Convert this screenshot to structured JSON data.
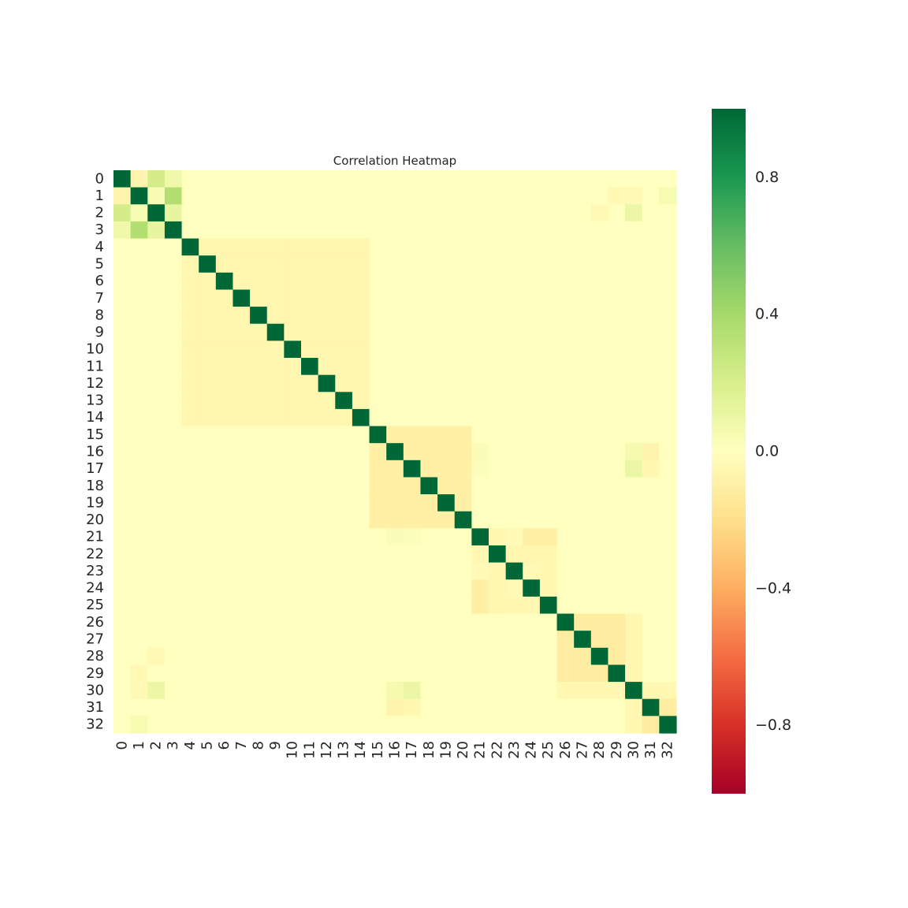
{
  "chart_data": {
    "type": "heatmap",
    "title": "Correlation Heatmap",
    "xlabel": "",
    "ylabel": "",
    "labels": [
      "0",
      "1",
      "2",
      "3",
      "4",
      "5",
      "6",
      "7",
      "8",
      "9",
      "10",
      "11",
      "12",
      "13",
      "14",
      "15",
      "16",
      "17",
      "18",
      "19",
      "20",
      "21",
      "22",
      "23",
      "24",
      "25",
      "26",
      "27",
      "28",
      "29",
      "30",
      "31",
      "32"
    ],
    "colormap": "RdYlGn",
    "vmin": -1,
    "vmax": 1,
    "colorbar_ticks": [
      0.8,
      0.4,
      0.0,
      -0.4,
      -0.8
    ],
    "colorbar_tick_labels": [
      "0.8",
      "0.4",
      "0.0",
      "−0.4",
      "−0.8"
    ],
    "blocks": [
      {
        "rows": [
          4,
          14
        ],
        "value": -0.06
      },
      {
        "rows": [
          15,
          20
        ],
        "value": -0.1
      },
      {
        "rows": [
          21,
          25
        ],
        "value": -0.05
      },
      {
        "rows": [
          26,
          29
        ],
        "value": -0.12
      },
      {
        "rows": [
          31,
          32
        ],
        "value": -0.12
      }
    ],
    "pairs": [
      {
        "i": 0,
        "j": 1,
        "value": -0.07
      },
      {
        "i": 0,
        "j": 2,
        "value": 0.22
      },
      {
        "i": 0,
        "j": 3,
        "value": 0.08
      },
      {
        "i": 1,
        "j": 2,
        "value": 0.04
      },
      {
        "i": 1,
        "j": 3,
        "value": 0.35
      },
      {
        "i": 2,
        "j": 3,
        "value": 0.12
      },
      {
        "i": 2,
        "j": 28,
        "value": -0.04
      },
      {
        "i": 2,
        "j": 30,
        "value": 0.1
      },
      {
        "i": 1,
        "j": 29,
        "value": -0.04
      },
      {
        "i": 1,
        "j": 30,
        "value": -0.04
      },
      {
        "i": 1,
        "j": 32,
        "value": 0.05
      },
      {
        "i": 16,
        "j": 30,
        "value": 0.06
      },
      {
        "i": 16,
        "j": 31,
        "value": -0.07
      },
      {
        "i": 17,
        "j": 30,
        "value": 0.1
      },
      {
        "i": 17,
        "j": 31,
        "value": -0.05
      },
      {
        "i": 16,
        "j": 21,
        "value": 0.03
      },
      {
        "i": 17,
        "j": 21,
        "value": 0.02
      },
      {
        "i": 21,
        "j": 23,
        "value": -0.03
      },
      {
        "i": 21,
        "j": 24,
        "value": -0.1
      },
      {
        "i": 21,
        "j": 25,
        "value": -0.1
      },
      {
        "i": 22,
        "j": 24,
        "value": -0.06
      },
      {
        "i": 22,
        "j": 25,
        "value": -0.06
      },
      {
        "i": 23,
        "j": 24,
        "value": -0.04
      },
      {
        "i": 30,
        "j": 26,
        "value": -0.05
      },
      {
        "i": 30,
        "j": 27,
        "value": -0.05
      },
      {
        "i": 30,
        "j": 28,
        "value": -0.05
      },
      {
        "i": 30,
        "j": 29,
        "value": -0.05
      },
      {
        "i": 30,
        "j": 31,
        "value": -0.05
      },
      {
        "i": 30,
        "j": 32,
        "value": -0.05
      }
    ]
  }
}
